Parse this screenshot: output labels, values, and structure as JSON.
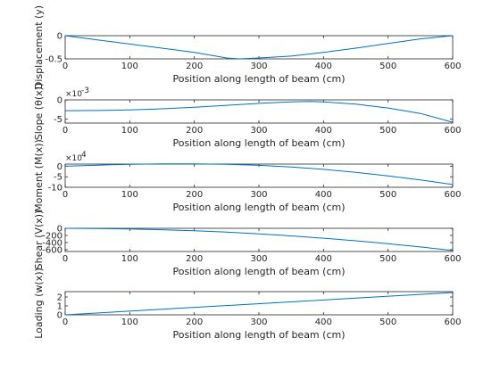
{
  "chart_data": [
    {
      "type": "line",
      "xlabel": "Position along length of beam (cm)",
      "ylabel": "Displacement (y)",
      "exponent_label": "",
      "x_ticks": [
        "0",
        "100",
        "200",
        "300",
        "400",
        "500",
        "600"
      ],
      "y_ticks": [
        "0",
        "-0.5"
      ],
      "xlim": [
        0,
        600
      ],
      "ylim": [
        -0.5,
        0
      ],
      "y_tick_values": [
        0,
        -0.5
      ],
      "series": [
        {
          "color": "#0072bd",
          "x": [
            0,
            50,
            100,
            150,
            200,
            250,
            270,
            300,
            350,
            400,
            450,
            500,
            550,
            600
          ],
          "y": [
            0,
            -0.09,
            -0.18,
            -0.27,
            -0.36,
            -0.48,
            -0.5,
            -0.48,
            -0.44,
            -0.36,
            -0.27,
            -0.17,
            -0.07,
            0
          ]
        }
      ]
    },
    {
      "type": "line",
      "xlabel": "Position along length of beam (cm)",
      "ylabel": "Slope (θ(x))",
      "exponent_label": "×10",
      "exponent_power": "-3",
      "x_ticks": [
        "0",
        "100",
        "200",
        "300",
        "400",
        "500",
        "600"
      ],
      "y_ticks": [
        "0",
        "-5"
      ],
      "xlim": [
        0,
        600
      ],
      "ylim": [
        -6,
        0
      ],
      "y_tick_values": [
        0,
        -5
      ],
      "series": [
        {
          "color": "#0072bd",
          "x": [
            0,
            50,
            100,
            150,
            200,
            250,
            300,
            350,
            380,
            400,
            450,
            500,
            550,
            600
          ],
          "y": [
            -2.8,
            -2.75,
            -2.6,
            -2.3,
            -1.9,
            -1.4,
            -0.9,
            -0.5,
            -0.4,
            -0.5,
            -1.1,
            -2.1,
            -3.5,
            -5.8
          ]
        }
      ]
    },
    {
      "type": "line",
      "xlabel": "Position along length of beam (cm)",
      "ylabel": "Moment (M(x))",
      "exponent_label": "×10",
      "exponent_power": "4",
      "x_ticks": [
        "0",
        "100",
        "200",
        "300",
        "400",
        "500",
        "600"
      ],
      "y_ticks": [
        "0",
        "-5",
        "-10"
      ],
      "xlim": [
        0,
        600
      ],
      "ylim": [
        -10,
        1
      ],
      "y_tick_values": [
        0,
        -5,
        -10
      ],
      "series": [
        {
          "color": "#0072bd",
          "x": [
            0,
            50,
            100,
            150,
            200,
            250,
            300,
            350,
            400,
            450,
            500,
            550,
            600
          ],
          "y": [
            0,
            0.5,
            0.9,
            1.1,
            1.1,
            0.9,
            0.4,
            -0.4,
            -1.5,
            -2.9,
            -4.6,
            -6.5,
            -8.7
          ]
        }
      ]
    },
    {
      "type": "line",
      "xlabel": "Position along length of beam (cm)",
      "ylabel": "Shear (V(x))",
      "exponent_label": "",
      "x_ticks": [
        "0",
        "100",
        "200",
        "300",
        "400",
        "500",
        "600"
      ],
      "y_ticks": [
        "0",
        "-200",
        "-400",
        "-600"
      ],
      "xlim": [
        0,
        600
      ],
      "ylim": [
        -650,
        0
      ],
      "y_tick_values": [
        0,
        -200,
        -400,
        -600
      ],
      "series": [
        {
          "color": "#0072bd",
          "x": [
            0,
            50,
            100,
            150,
            200,
            250,
            300,
            350,
            400,
            450,
            500,
            550,
            600
          ],
          "y": [
            0,
            -4,
            -17,
            -39,
            -69,
            -108,
            -156,
            -212,
            -277,
            -350,
            -432,
            -523,
            -622
          ]
        }
      ]
    },
    {
      "type": "line",
      "xlabel": "Position along length of beam (cm)",
      "ylabel": "Loading (w(x))",
      "exponent_label": "",
      "x_ticks": [
        "0",
        "100",
        "200",
        "300",
        "400",
        "500",
        "600"
      ],
      "y_ticks": [
        "2",
        "1",
        "0"
      ],
      "xlim": [
        0,
        600
      ],
      "ylim": [
        0,
        2.6
      ],
      "y_tick_values": [
        2,
        1,
        0
      ],
      "series": [
        {
          "color": "#0072bd",
          "x": [
            0,
            600
          ],
          "y": [
            0,
            2.5
          ]
        }
      ]
    }
  ]
}
